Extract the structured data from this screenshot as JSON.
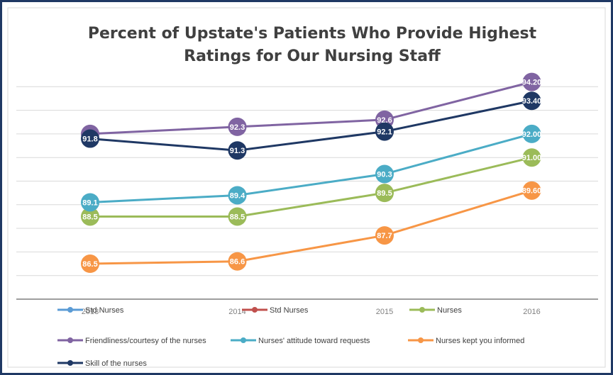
{
  "chart_data": {
    "type": "line",
    "title": [
      "Percent of Upstate's Patients Who Provide Highest",
      "Ratings for Our Nursing Staff"
    ],
    "categories": [
      "2013",
      "2014",
      "2015",
      "2016"
    ],
    "ylim": [
      85,
      95
    ],
    "yticks": [
      85,
      86,
      87,
      88,
      89,
      90,
      91,
      92,
      93,
      94
    ],
    "grid": true,
    "legend": "bottom",
    "series": [
      {
        "name": "Std Nurses",
        "color": "#5b9bd5",
        "values": [
          null,
          null,
          null,
          null
        ]
      },
      {
        "name": "Std Nurses",
        "color": "#c0504d",
        "values": [
          null,
          null,
          null,
          null
        ]
      },
      {
        "name": "Nurses",
        "color": "#9bbb59",
        "values": [
          88.5,
          88.5,
          89.5,
          91
        ],
        "value_labels": [
          "88.5",
          "88.5",
          "89.5",
          "91.00"
        ]
      },
      {
        "name": "Friendliness/courtesy of the nurses",
        "color": "#8064a2",
        "values": [
          92,
          92.3,
          92.6,
          94.2
        ],
        "value_labels": [
          "92",
          "92.3",
          "92.6",
          "94.20"
        ]
      },
      {
        "name": "Nurses' attitude toward requests",
        "color": "#4bacc6",
        "values": [
          89.1,
          89.4,
          90.3,
          92
        ],
        "value_labels": [
          "89.1",
          "89.4",
          "90.3",
          "92.00"
        ]
      },
      {
        "name": "Nurses kept you informed",
        "color": "#f79646",
        "values": [
          86.5,
          86.6,
          87.7,
          89.6
        ],
        "value_labels": [
          "86.5",
          "86.6",
          "87.7",
          "89.60"
        ]
      },
      {
        "name": "Skill of the nurses",
        "color": "#1f3864",
        "values": [
          91.8,
          91.3,
          92.1,
          93.4
        ],
        "value_labels": [
          "91.8",
          "91.3",
          "92.1",
          "93.40"
        ]
      }
    ]
  }
}
